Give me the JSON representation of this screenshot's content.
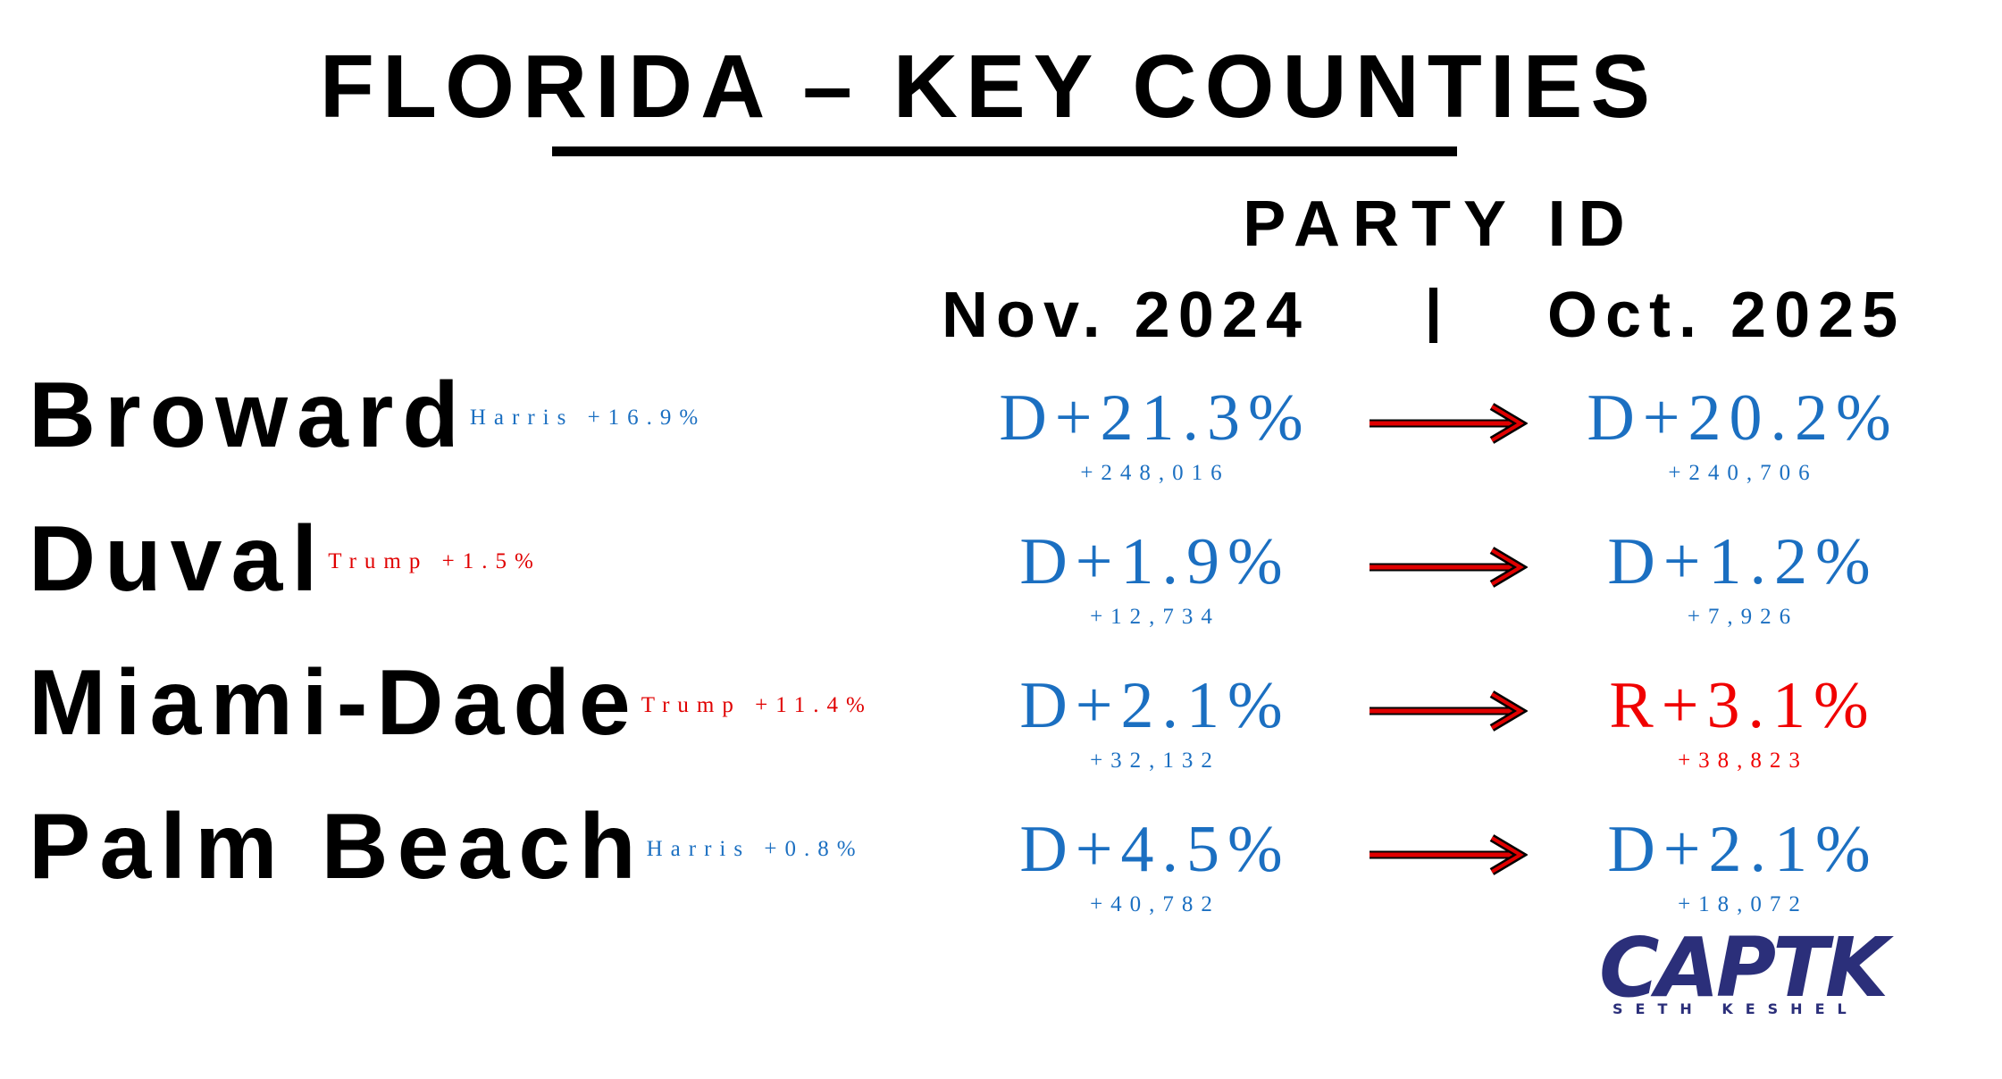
{
  "header": {
    "title": "FLORIDA – KEY COUNTIES"
  },
  "columns": {
    "heading": "PARTY ID",
    "from": "Nov. 2024",
    "to": "Oct. 2025"
  },
  "rows": [
    {
      "name": "Broward",
      "result": "Harris +16.9%",
      "result_color": "#1b6fc1",
      "before": {
        "margin": "D+21.3%",
        "votes": "+248,016",
        "color": "#1b6fc1"
      },
      "after": {
        "margin": "D+20.2%",
        "votes": "+240,706",
        "color": "#1b6fc1"
      }
    },
    {
      "name": "Duval",
      "result": "Trump +1.5%",
      "result_color": "#e00000",
      "before": {
        "margin": "D+1.9%",
        "votes": "+12,734",
        "color": "#1b6fc1"
      },
      "after": {
        "margin": "D+1.2%",
        "votes": "+7,926",
        "color": "#1b6fc1"
      }
    },
    {
      "name": "Miami-Dade",
      "result": "Trump +11.4%",
      "result_color": "#e00000",
      "before": {
        "margin": "D+2.1%",
        "votes": "+32,132",
        "color": "#1b6fc1"
      },
      "after": {
        "margin": "R+3.1%",
        "votes": "+38,823",
        "color": "#f00000"
      }
    },
    {
      "name": "Palm Beach",
      "result": "Harris +0.8%",
      "result_color": "#1b6fc1",
      "before": {
        "margin": "D+4.5%",
        "votes": "+40,782",
        "color": "#1b6fc1"
      },
      "after": {
        "margin": "D+2.1%",
        "votes": "+18,072",
        "color": "#1b6fc1"
      }
    }
  ],
  "logo": {
    "name": "CAPTK",
    "byline": "SETH KESHEL"
  }
}
